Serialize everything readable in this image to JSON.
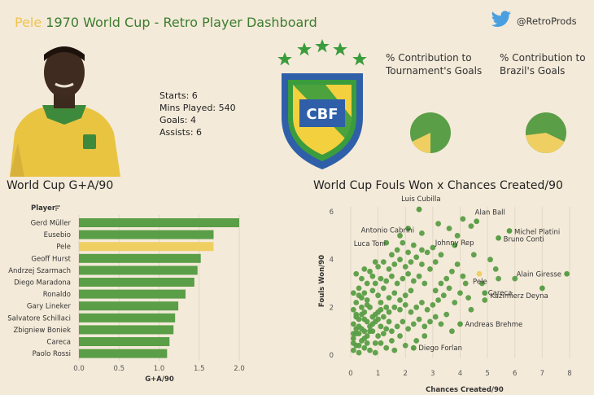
{
  "header": {
    "title_highlight": "Pele",
    "title_rest": " 1970 World Cup - Retro Player Dashboard",
    "twitter_handle": "@RetroProds",
    "twitter_icon": "twitter-bird-icon"
  },
  "player_stats": {
    "starts": "Starts: 6",
    "mins": "Mins Played: 540",
    "goals": "Goals: 4",
    "assists": "Assists: 6"
  },
  "crest": {
    "text": "CBF",
    "stars": 5
  },
  "pies": {
    "pie1_title": "% Contribution to Tournament's Goals",
    "pie2_title": "% Contribution to Brazil's Goals"
  },
  "colors": {
    "green": "#5a9e47",
    "highlight": "#f0cf62",
    "title_green": "#3c7d2f",
    "title_yellow": "#f0c44c"
  },
  "chart_data": [
    {
      "type": "bar",
      "title": "World Cup G+A/90",
      "xlabel": "G+A/90",
      "ylabel": "Player",
      "xlim": [
        0,
        2.0
      ],
      "xticks": [
        "0.0",
        "0.5",
        "1.0",
        "1.5",
        "2.0"
      ],
      "highlight": "Pele",
      "categories": [
        "Gerd Müller",
        "Eusebio",
        "Pele",
        "Geoff Hurst",
        "Andrzej Szarmach",
        "Diego Maradona",
        "Ronaldo",
        "Gary Lineker",
        "Salvatore Schillaci",
        "Zbigniew Boniek",
        "Careca",
        "Paolo Rossi"
      ],
      "values": [
        2.0,
        1.68,
        1.68,
        1.52,
        1.48,
        1.44,
        1.33,
        1.24,
        1.2,
        1.18,
        1.13,
        1.1
      ]
    },
    {
      "type": "scatter",
      "title": "World Cup Fouls Won x Chances Created/90",
      "xlabel": "Chances Created/90",
      "ylabel": "Fouls Won/90",
      "xlim": [
        0,
        8
      ],
      "ylim": [
        0,
        6
      ],
      "xticks": [
        "0",
        "1",
        "2",
        "3",
        "4",
        "5",
        "6",
        "7",
        "8"
      ],
      "yticks": [
        "0",
        "2",
        "4",
        "6"
      ],
      "labeled_points": [
        {
          "label": "Luis Cubilla",
          "x": 2.5,
          "y": 6.1
        },
        {
          "label": "Antonio Cabrini",
          "x": 2.1,
          "y": 5.3
        },
        {
          "label": "Alan Ball",
          "x": 4.6,
          "y": 5.6
        },
        {
          "label": "Michel Platini",
          "x": 5.8,
          "y": 5.2
        },
        {
          "label": "Bruno Conti",
          "x": 5.4,
          "y": 4.9
        },
        {
          "label": "Luca Toni",
          "x": 1.3,
          "y": 4.7
        },
        {
          "label": "Johnny Rep",
          "x": 3.8,
          "y": 4.6
        },
        {
          "label": "Alain Giresse",
          "x": 7.9,
          "y": 3.4
        },
        {
          "label": "Pele",
          "x": 4.7,
          "y": 3.4,
          "highlight": true
        },
        {
          "label": "Careca",
          "x": 4.9,
          "y": 2.6
        },
        {
          "label": "Kazimierz Deyna",
          "x": 7.0,
          "y": 2.8
        },
        {
          "label": "Andreas Brehme",
          "x": 4.0,
          "y": 1.3
        },
        {
          "label": "Diego Forlan",
          "x": 2.3,
          "y": 0.3
        }
      ],
      "points": [
        [
          0.1,
          0.2
        ],
        [
          0.2,
          0.4
        ],
        [
          0.1,
          0.7
        ],
        [
          0.3,
          0.9
        ],
        [
          0.2,
          1.1
        ],
        [
          0.1,
          1.3
        ],
        [
          0.3,
          1.5
        ],
        [
          0.2,
          1.7
        ],
        [
          0.1,
          1.9
        ],
        [
          0.4,
          2.0
        ],
        [
          0.3,
          0.1
        ],
        [
          0.5,
          0.3
        ],
        [
          0.4,
          0.6
        ],
        [
          0.6,
          0.8
        ],
        [
          0.5,
          1.0
        ],
        [
          0.7,
          1.2
        ],
        [
          0.6,
          1.4
        ],
        [
          0.8,
          1.6
        ],
        [
          0.5,
          1.8
        ],
        [
          0.7,
          2.0
        ],
        [
          0.9,
          0.5
        ],
        [
          1.0,
          0.8
        ],
        [
          0.8,
          1.0
        ],
        [
          1.1,
          1.2
        ],
        [
          0.9,
          1.4
        ],
        [
          1.2,
          1.6
        ],
        [
          1.0,
          1.8
        ],
        [
          1.3,
          2.0
        ],
        [
          1.1,
          2.2
        ],
        [
          0.6,
          2.3
        ],
        [
          0.3,
          2.5
        ],
        [
          0.5,
          2.6
        ],
        [
          0.8,
          2.7
        ],
        [
          1.0,
          2.5
        ],
        [
          1.2,
          2.8
        ],
        [
          1.4,
          2.4
        ],
        [
          1.6,
          2.6
        ],
        [
          1.8,
          2.3
        ],
        [
          2.0,
          2.5
        ],
        [
          2.2,
          2.7
        ],
        [
          0.9,
          3.0
        ],
        [
          1.1,
          3.2
        ],
        [
          1.3,
          3.1
        ],
        [
          1.5,
          3.3
        ],
        [
          1.7,
          3.0
        ],
        [
          1.9,
          3.2
        ],
        [
          2.1,
          3.4
        ],
        [
          2.3,
          3.1
        ],
        [
          2.5,
          3.3
        ],
        [
          2.7,
          3.0
        ],
        [
          0.7,
          3.5
        ],
        [
          1.0,
          3.7
        ],
        [
          1.2,
          3.9
        ],
        [
          1.4,
          3.6
        ],
        [
          1.6,
          3.8
        ],
        [
          1.8,
          4.0
        ],
        [
          2.0,
          3.7
        ],
        [
          2.2,
          3.9
        ],
        [
          2.4,
          4.1
        ],
        [
          2.6,
          3.8
        ],
        [
          1.5,
          1.0
        ],
        [
          1.7,
          1.2
        ],
        [
          1.9,
          1.4
        ],
        [
          2.1,
          1.1
        ],
        [
          2.3,
          1.3
        ],
        [
          2.5,
          1.5
        ],
        [
          2.7,
          1.2
        ],
        [
          2.9,
          1.4
        ],
        [
          3.1,
          1.6
        ],
        [
          3.3,
          1.3
        ],
        [
          1.4,
          1.8
        ],
        [
          1.6,
          2.0
        ],
        [
          1.8,
          1.9
        ],
        [
          2.0,
          2.1
        ],
        [
          2.2,
          1.8
        ],
        [
          2.4,
          2.0
        ],
        [
          2.6,
          2.2
        ],
        [
          2.8,
          1.9
        ],
        [
          3.0,
          2.1
        ],
        [
          3.2,
          2.3
        ],
        [
          0.2,
          2.2
        ],
        [
          0.4,
          2.4
        ],
        [
          0.1,
          2.6
        ],
        [
          0.3,
          2.8
        ],
        [
          0.6,
          3.0
        ],
        [
          0.4,
          3.2
        ],
        [
          0.2,
          3.4
        ],
        [
          0.5,
          3.6
        ],
        [
          0.8,
          3.3
        ],
        [
          0.9,
          3.9
        ],
        [
          1.5,
          0.6
        ],
        [
          1.8,
          0.8
        ],
        [
          2.0,
          0.4
        ],
        [
          1.3,
          0.3
        ],
        [
          1.6,
          0.2
        ],
        [
          0.7,
          0.2
        ],
        [
          1.1,
          0.5
        ],
        [
          0.9,
          0.1
        ],
        [
          2.4,
          0.6
        ],
        [
          2.7,
          0.8
        ],
        [
          3.4,
          2.5
        ],
        [
          3.6,
          2.8
        ],
        [
          3.8,
          2.2
        ],
        [
          4.0,
          2.6
        ],
        [
          4.2,
          3.0
        ],
        [
          3.5,
          3.2
        ],
        [
          3.7,
          3.5
        ],
        [
          3.9,
          3.8
        ],
        [
          4.1,
          3.3
        ],
        [
          4.3,
          2.4
        ],
        [
          3.1,
          2.7
        ],
        [
          3.3,
          3.0
        ],
        [
          2.9,
          3.6
        ],
        [
          3.1,
          3.9
        ],
        [
          3.3,
          4.2
        ],
        [
          2.8,
          4.3
        ],
        [
          3.0,
          4.5
        ],
        [
          2.6,
          4.4
        ],
        [
          2.3,
          4.6
        ],
        [
          2.1,
          4.3
        ],
        [
          1.9,
          4.7
        ],
        [
          1.7,
          4.4
        ],
        [
          1.5,
          4.2
        ],
        [
          1.8,
          5.0
        ],
        [
          2.6,
          5.1
        ],
        [
          3.2,
          5.5
        ],
        [
          3.6,
          5.3
        ],
        [
          4.1,
          5.7
        ],
        [
          4.4,
          5.4
        ],
        [
          3.9,
          5.0
        ],
        [
          4.5,
          4.2
        ],
        [
          5.1,
          4.0
        ],
        [
          5.3,
          3.6
        ],
        [
          4.8,
          3.0
        ],
        [
          5.4,
          3.2
        ],
        [
          6.0,
          3.2
        ],
        [
          4.4,
          1.9
        ],
        [
          4.9,
          2.3
        ],
        [
          3.5,
          1.7
        ],
        [
          3.7,
          1.0
        ],
        [
          0.1,
          0.9
        ],
        [
          0.3,
          1.2
        ],
        [
          0.5,
          1.5
        ],
        [
          0.2,
          1.6
        ],
        [
          0.4,
          1.1
        ],
        [
          0.6,
          0.5
        ],
        [
          0.8,
          1.3
        ],
        [
          1.0,
          1.5
        ],
        [
          1.2,
          0.9
        ],
        [
          1.4,
          1.4
        ],
        [
          0.1,
          0.5
        ],
        [
          0.2,
          0.9
        ],
        [
          0.4,
          1.7
        ],
        [
          0.6,
          2.1
        ],
        [
          0.3,
          0.4
        ],
        [
          0.5,
          0.7
        ],
        [
          0.7,
          1.0
        ],
        [
          0.9,
          1.7
        ],
        [
          1.1,
          1.9
        ],
        [
          1.3,
          1.1
        ]
      ]
    }
  ]
}
